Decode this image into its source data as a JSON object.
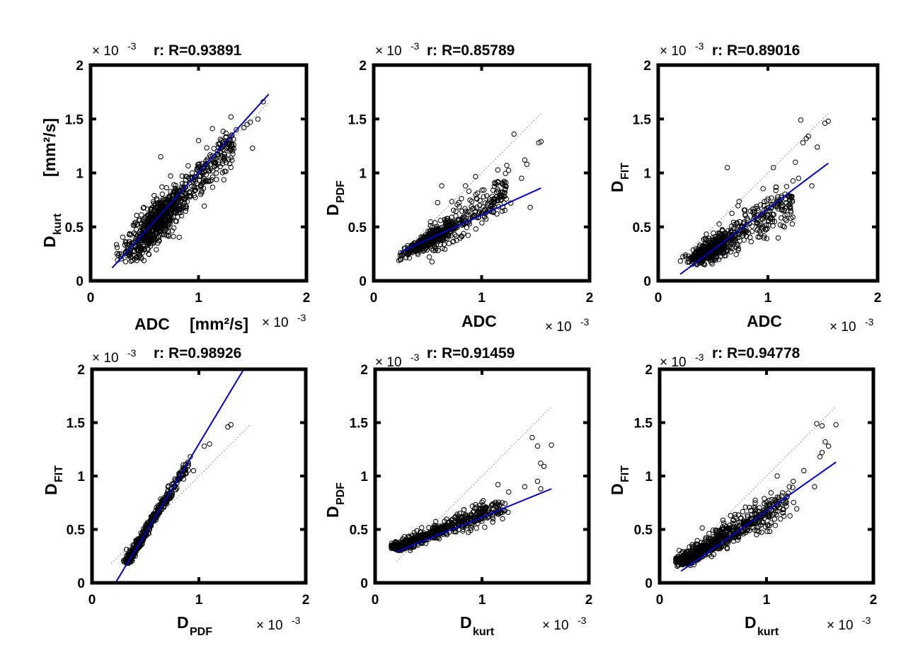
{
  "colors": {
    "scatter": "#000000",
    "fit_line": "#0000cc",
    "identity_line": "#777777",
    "axes": "#000000"
  },
  "chart_data": [
    {
      "type": "scatter",
      "title": "r: R=0.93891",
      "xlabel": {
        "main": "ADC",
        "sub": "",
        "unit": "[mm²/s]"
      },
      "ylabel": {
        "main": "D",
        "sub": "kurt",
        "unit": "[mm²/s]"
      },
      "xlim": [
        0,
        2
      ],
      "ylim": [
        0,
        2
      ],
      "xticks": [
        0,
        1,
        2
      ],
      "yticks": [
        0,
        0.5,
        1,
        1.5,
        2
      ],
      "xtick_labels": [
        "0",
        "1",
        "2"
      ],
      "ytick_labels": [
        "0",
        "0.5",
        "1",
        "1.5",
        "2"
      ],
      "multiplier": {
        "base": "× 10",
        "exp": "-3"
      },
      "fit_line": {
        "x": [
          0.2,
          1.65
        ],
        "y": [
          0.12,
          1.73
        ]
      },
      "identity_line": {
        "x": [
          0.2,
          1.65
        ],
        "y": [
          0.2,
          1.65
        ]
      },
      "cloud": {
        "center": [
          0.58,
          0.52
        ],
        "spread": [
          0.14,
          0.1
        ],
        "n": 900,
        "outliers": [
          [
            1.6,
            1.66
          ],
          [
            1.3,
            1.52
          ],
          [
            1.48,
            1.47
          ],
          [
            1.45,
            1.45
          ],
          [
            0.65,
            1.15
          ],
          [
            1.55,
            1.5
          ],
          [
            1.5,
            1.23
          ],
          [
            1.0,
            1.3
          ],
          [
            1.42,
            1.42
          ],
          [
            1.35,
            1.4
          ],
          [
            1.0,
            1.05
          ]
        ]
      }
    },
    {
      "type": "scatter",
      "title": "r: R=0.85789",
      "xlabel": {
        "main": "ADC",
        "sub": "",
        "unit": ""
      },
      "ylabel": {
        "main": "D",
        "sub": "PDF",
        "unit": ""
      },
      "xlim": [
        0,
        2
      ],
      "ylim": [
        0,
        2
      ],
      "xticks": [
        0,
        1,
        2
      ],
      "yticks": [
        0,
        0.5,
        1,
        1.5,
        2
      ],
      "xtick_labels": [
        "0",
        "1",
        "2"
      ],
      "ytick_labels": [
        "0",
        "0.5",
        "1",
        "1.5",
        "2"
      ],
      "multiplier": {
        "base": "× 10",
        "exp": "-3"
      },
      "fit_line": {
        "x": [
          0.25,
          1.55
        ],
        "y": [
          0.27,
          0.86
        ]
      },
      "identity_line": {
        "x": [
          0.25,
          1.55
        ],
        "y": [
          0.25,
          1.55
        ]
      },
      "cloud": {
        "center": [
          0.5,
          0.37
        ],
        "spread": [
          0.1,
          0.03
        ],
        "n": 700,
        "outliers": [
          [
            1.3,
            1.36
          ],
          [
            1.55,
            1.29
          ],
          [
            1.53,
            1.28
          ],
          [
            1.4,
            1.12
          ],
          [
            1.42,
            1.08
          ],
          [
            1.37,
            0.95
          ],
          [
            0.63,
            0.88
          ],
          [
            0.85,
            0.88
          ],
          [
            1.15,
            0.92
          ],
          [
            1.27,
            0.72
          ],
          [
            1.45,
            0.68
          ]
        ]
      }
    },
    {
      "type": "scatter",
      "title": "r: R=0.89016",
      "xlabel": {
        "main": "ADC",
        "sub": "",
        "unit": ""
      },
      "ylabel": {
        "main": "D",
        "sub": "FIT",
        "unit": ""
      },
      "xlim": [
        0,
        2
      ],
      "ylim": [
        0,
        2
      ],
      "xticks": [
        0,
        1,
        2
      ],
      "yticks": [
        0,
        0.5,
        1,
        1.5,
        2
      ],
      "xtick_labels": [
        "0",
        "1",
        "2"
      ],
      "ytick_labels": [
        "0",
        "0.5",
        "1",
        "1.5",
        "2"
      ],
      "multiplier": {
        "base": "× 10",
        "exp": "-3"
      },
      "fit_line": {
        "x": [
          0.2,
          1.55
        ],
        "y": [
          0.06,
          1.09
        ]
      },
      "identity_line": {
        "x": [
          0.2,
          1.55
        ],
        "y": [
          0.2,
          1.55
        ]
      },
      "cloud": {
        "center": [
          0.48,
          0.29
        ],
        "spread": [
          0.1,
          0.05
        ],
        "n": 700,
        "outliers": [
          [
            1.3,
            1.49
          ],
          [
            1.55,
            1.48
          ],
          [
            1.52,
            1.46
          ],
          [
            1.37,
            1.34
          ],
          [
            1.35,
            1.32
          ],
          [
            1.32,
            1.28
          ],
          [
            1.45,
            1.24
          ],
          [
            0.63,
            1.05
          ],
          [
            1.05,
            1.05
          ],
          [
            1.25,
            1.1
          ],
          [
            1.28,
            0.95
          ],
          [
            1.4,
            0.88
          ]
        ]
      }
    },
    {
      "type": "scatter",
      "title": "r: R=0.98926",
      "xlabel": {
        "main": "D",
        "sub": "PDF",
        "unit": ""
      },
      "ylabel": {
        "main": "D",
        "sub": "FIT",
        "unit": ""
      },
      "xlim": [
        0,
        2
      ],
      "ylim": [
        0,
        2
      ],
      "xticks": [
        0,
        1,
        2
      ],
      "yticks": [
        0,
        0.5,
        1,
        1.5,
        2
      ],
      "xtick_labels": [
        "0",
        "1",
        "2"
      ],
      "ytick_labels": [
        "0",
        "0.5",
        "1",
        "1.5",
        "2"
      ],
      "multiplier": {
        "base": "× 10",
        "exp": "-3"
      },
      "fit_line": {
        "x": [
          0.22,
          1.42
        ],
        "y": [
          0.0,
          2.0
        ]
      },
      "identity_line": {
        "x": [
          0.18,
          1.48
        ],
        "y": [
          0.18,
          1.48
        ]
      },
      "cloud": {
        "line": [
          [
            0.33,
            0.2
          ],
          [
            0.9,
            1.12
          ]
        ],
        "jitter": [
          0.015,
          0.02
        ],
        "n": 500,
        "outliers": [
          [
            1.3,
            1.48
          ],
          [
            1.27,
            1.46
          ],
          [
            1.1,
            1.3
          ],
          [
            1.05,
            1.28
          ],
          [
            0.92,
            1.18
          ],
          [
            0.85,
            1.08
          ],
          [
            0.95,
            1.05
          ]
        ]
      }
    },
    {
      "type": "scatter",
      "title": "r: R=0.91459",
      "xlabel": {
        "main": "D",
        "sub": "kurt",
        "unit": ""
      },
      "ylabel": {
        "main": "D",
        "sub": "PDF",
        "unit": ""
      },
      "xlim": [
        0,
        2
      ],
      "ylim": [
        0,
        2
      ],
      "xticks": [
        0,
        1,
        2
      ],
      "yticks": [
        0,
        0.5,
        1,
        1.5,
        2
      ],
      "xtick_labels": [
        "0",
        "1",
        "2"
      ],
      "ytick_labels": [
        "0",
        "0.5",
        "1",
        "1.5",
        "2"
      ],
      "multiplier": {
        "base": "× 10",
        "exp": "-3"
      },
      "fit_line": {
        "x": [
          0.2,
          1.65
        ],
        "y": [
          0.29,
          0.88
        ]
      },
      "identity_line": {
        "x": [
          0.2,
          1.65
        ],
        "y": [
          0.2,
          1.65
        ]
      },
      "cloud": {
        "line": [
          [
            0.2,
            0.33
          ],
          [
            1.2,
            0.72
          ]
        ],
        "jitter": [
          0.04,
          0.035
        ],
        "n": 700,
        "outliers": [
          [
            1.47,
            1.36
          ],
          [
            1.65,
            1.29
          ],
          [
            1.52,
            1.28
          ],
          [
            1.55,
            1.12
          ],
          [
            1.58,
            1.09
          ],
          [
            1.52,
            0.95
          ],
          [
            1.15,
            0.92
          ],
          [
            1.25,
            0.85
          ],
          [
            1.4,
            0.9
          ],
          [
            1.55,
            0.88
          ]
        ]
      }
    },
    {
      "type": "scatter",
      "title": "r: R=0.94778",
      "xlabel": {
        "main": "D",
        "sub": "kurt",
        "unit": ""
      },
      "ylabel": {
        "main": "D",
        "sub": "FIT",
        "unit": ""
      },
      "xlim": [
        0,
        2
      ],
      "ylim": [
        0,
        2
      ],
      "xticks": [
        0,
        1,
        2
      ],
      "yticks": [
        0,
        0.5,
        1,
        1.5,
        2
      ],
      "xtick_labels": [
        "0",
        "1",
        "2"
      ],
      "ytick_labels": [
        "0",
        "0.5",
        "1",
        "1.5",
        "2"
      ],
      "multiplier": {
        "base": "× 10",
        "exp": "-3"
      },
      "fit_line": {
        "x": [
          0.2,
          1.65
        ],
        "y": [
          0.11,
          1.13
        ]
      },
      "identity_line": {
        "x": [
          0.2,
          1.65
        ],
        "y": [
          0.2,
          1.65
        ]
      },
      "cloud": {
        "line": [
          [
            0.2,
            0.2
          ],
          [
            1.2,
            0.78
          ]
        ],
        "jitter": [
          0.05,
          0.05
        ],
        "n": 700,
        "outliers": [
          [
            1.47,
            1.49
          ],
          [
            1.65,
            1.48
          ],
          [
            1.52,
            1.47
          ],
          [
            1.55,
            1.32
          ],
          [
            1.58,
            1.28
          ],
          [
            1.52,
            1.22
          ],
          [
            1.5,
            1.18
          ],
          [
            1.35,
            1.05
          ],
          [
            1.1,
            1.0
          ],
          [
            1.25,
            0.95
          ],
          [
            1.45,
            0.9
          ]
        ]
      }
    }
  ]
}
